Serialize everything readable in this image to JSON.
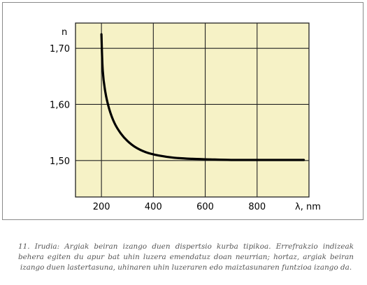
{
  "chart_data": {
    "type": "line",
    "title": "",
    "xlabel": "λ, nm",
    "ylabel": "n",
    "xlim": [
      100,
      1000
    ],
    "ylim": [
      1.435,
      1.745
    ],
    "x_ticks": [
      200,
      400,
      600,
      800
    ],
    "x_tick_labels": [
      "200",
      "400",
      "600",
      "800"
    ],
    "y_ticks": [
      1.5,
      1.6,
      1.7
    ],
    "y_tick_labels": [
      "1,50",
      "1,60",
      "1,70"
    ],
    "grid": true,
    "colors": {
      "plot_background": "#f6f2c6",
      "grid": "#222222",
      "curve": "#000000"
    },
    "series": [
      {
        "x": [
          200,
          205,
          215,
          230,
          250,
          275,
          300,
          330,
          370,
          420,
          480,
          550,
          620,
          700,
          800,
          900,
          980
        ],
        "y": [
          1.725,
          1.66,
          1.622,
          1.592,
          1.567,
          1.548,
          1.535,
          1.524,
          1.515,
          1.509,
          1.505,
          1.503,
          1.502,
          1.501,
          1.501,
          1.501,
          1.501
        ]
      }
    ]
  },
  "caption": "11. Irudia: Argiak beiran izango duen dispertsio kurba tipikoa. Errefrakzio indizeak behera egiten du apur bat uhin luzera emendatuz doan neurrian; hortaz, argiak beiran izango duen lastertasuna, uhinaren uhin luzeraren edo maiztasunaren funtzioa izango da."
}
